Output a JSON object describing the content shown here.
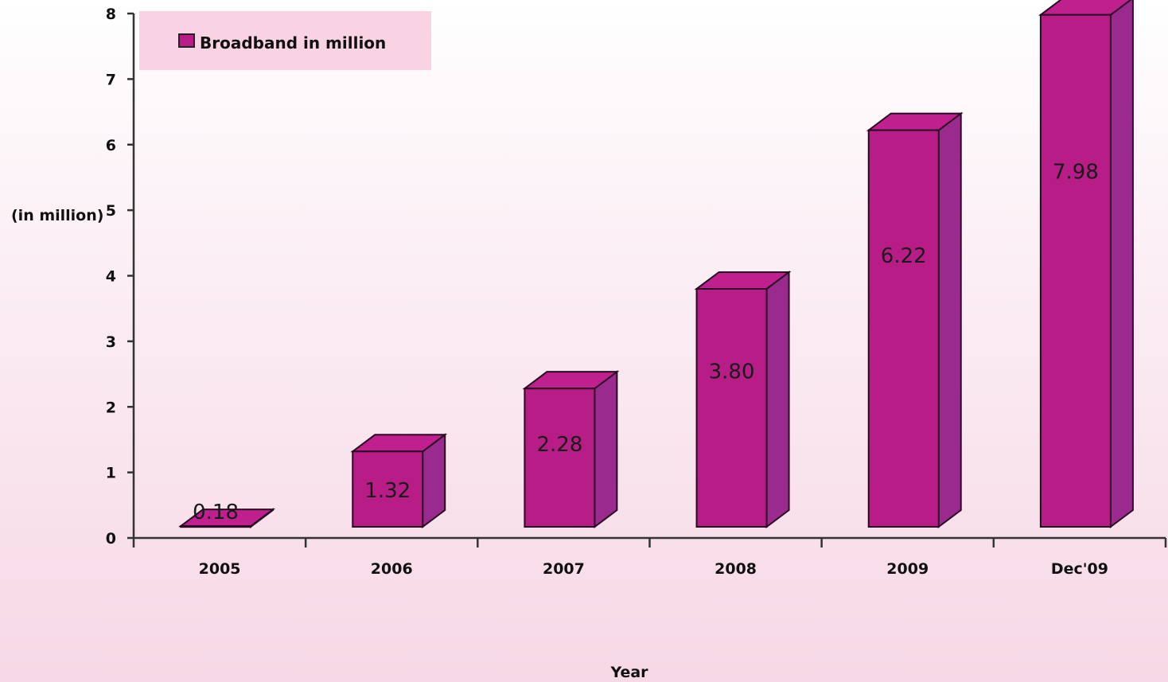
{
  "chart_data": {
    "type": "bar",
    "categories": [
      "2005",
      "2006",
      "2007",
      "2008",
      "2009",
      "Dec'09"
    ],
    "series": [
      {
        "name": "Broadband in million",
        "values": [
          0.18,
          1.32,
          2.28,
          3.8,
          6.22,
          7.98
        ],
        "labels": [
          "0.18",
          "1.32",
          "2.28",
          "3.80",
          "6.22",
          "7.98"
        ]
      }
    ],
    "title": "",
    "xlabel": "Year",
    "ylabel": "(in million)",
    "ylim": [
      0,
      8
    ],
    "yticks": [
      "0",
      "1",
      "2",
      "3",
      "4",
      "5",
      "6",
      "7",
      "8"
    ],
    "grid": false,
    "legend_position": "top-left",
    "style": "3d-bar",
    "colors": {
      "bar_front": "#b71c87",
      "bar_side": "#9b2a8e",
      "bar_top": "#c0208e",
      "legend_bg": "#f9d2e4"
    }
  }
}
